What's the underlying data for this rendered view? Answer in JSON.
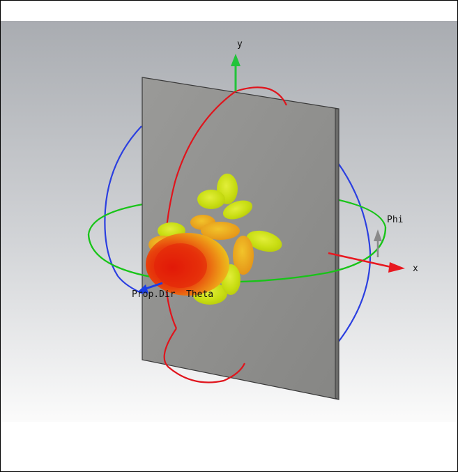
{
  "labels": {
    "y_axis": "y",
    "x_axis": "x",
    "phi": "Phi",
    "theta": "Theta",
    "prop_dir": "Prop.Dir"
  },
  "colors": {
    "background_top": "#a9acb1",
    "background_bottom": "#fafafa",
    "plate": "#8f8f8d",
    "plate_edge": "#3a3a3a",
    "theta_circle": "#e0141c",
    "phi_circle": "#18c418",
    "xy_circle": "#2b3fe0",
    "y_axis_arrow": "#22c33a",
    "x_axis_arrow": "#e81820",
    "phi_arrow": "#8a8a8a",
    "prop_arrow": "#1a3ee6",
    "pattern_main_lobe": "#e8220a",
    "pattern_side_lobe": "#cfe60e"
  }
}
